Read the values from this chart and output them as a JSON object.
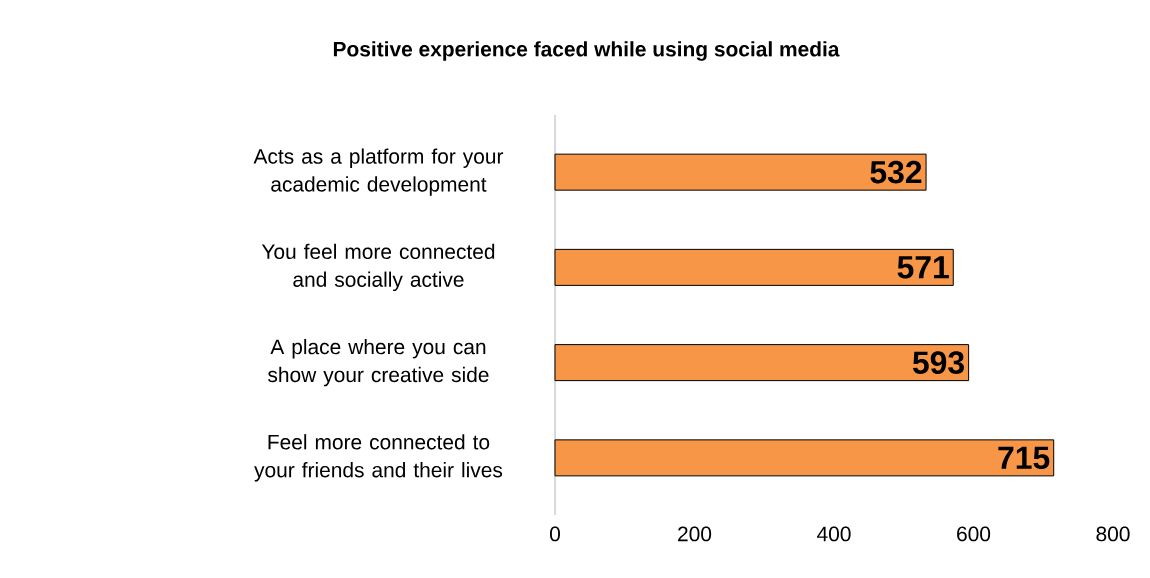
{
  "chart_data": {
    "type": "bar",
    "orientation": "horizontal",
    "title": "Positive experience faced while using social media",
    "categories": [
      "Acts as a platform for your academic development",
      "You feel more connected and socially active",
      "A place where you can show your creative side",
      "Feel more connected to your friends and their lives"
    ],
    "values": [
      532,
      571,
      593,
      715
    ],
    "color": "#f79646",
    "data_labels": true,
    "xlim": [
      0,
      800
    ],
    "xticks": [
      0,
      200,
      400,
      600,
      800
    ]
  }
}
